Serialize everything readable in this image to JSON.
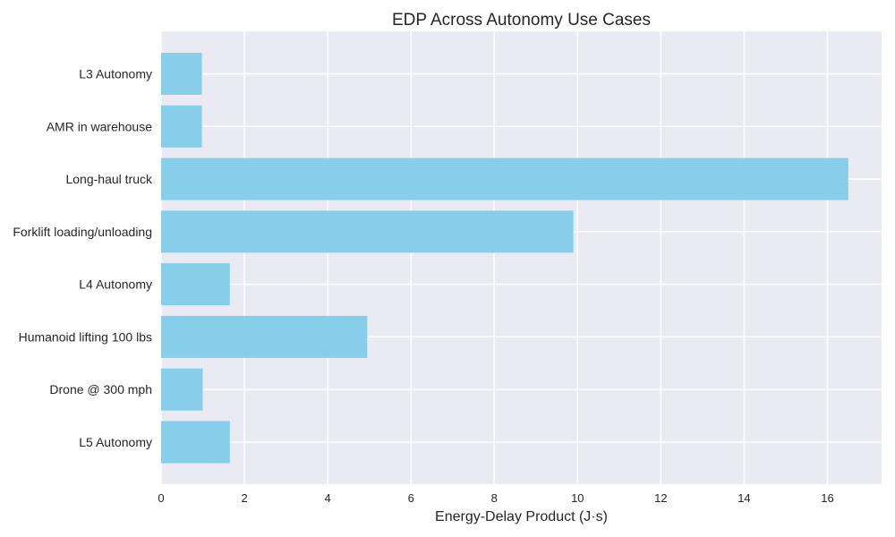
{
  "chart_data": {
    "type": "bar",
    "orientation": "horizontal",
    "title": "EDP Across Autonomy Use Cases",
    "xlabel": "Energy-Delay Product (J·s)",
    "ylabel": "",
    "categories": [
      "L3 Autonomy",
      "AMR in warehouse",
      "Long-haul truck",
      "Forklift loading/unloading",
      "L4 Autonomy",
      "Humanoid lifting 100 lbs",
      "Drone @ 300 mph",
      "L5 Autonomy"
    ],
    "values": [
      0.98,
      0.98,
      16.5,
      9.9,
      1.65,
      4.95,
      1.0,
      1.65
    ],
    "xlim": [
      0,
      17.3
    ],
    "xticks": [
      0,
      2,
      4,
      6,
      8,
      10,
      12,
      14,
      16
    ],
    "grid": true,
    "legend": "none",
    "colors": {
      "bar": "#87ceeb",
      "plot_background": "#eaeaf2",
      "grid": "#ffffff",
      "text": "#262626"
    }
  }
}
